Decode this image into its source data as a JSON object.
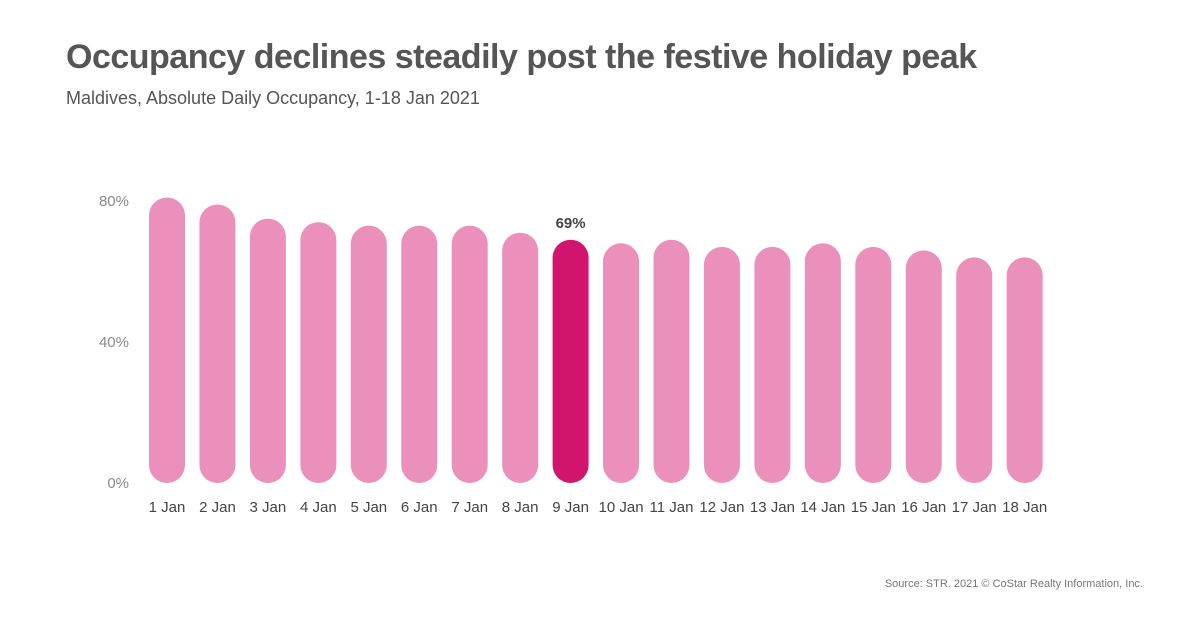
{
  "header": {
    "title": "Occupancy declines steadily post the festive holiday peak",
    "subtitle": "Maldives, Absolute Daily Occupancy, 1-18 Jan 2021"
  },
  "footer": {
    "source": "Source: STR. 2021 © CoStar Realty Information, Inc."
  },
  "colors": {
    "bar": "#ea90bb",
    "highlight": "#d1156f"
  },
  "chart_data": {
    "type": "bar",
    "categories": [
      "1 Jan",
      "2 Jan",
      "3 Jan",
      "4 Jan",
      "5 Jan",
      "6 Jan",
      "7 Jan",
      "8 Jan",
      "9 Jan",
      "10 Jan",
      "11 Jan",
      "12 Jan",
      "13 Jan",
      "14 Jan",
      "15 Jan",
      "16 Jan",
      "17 Jan",
      "18 Jan"
    ],
    "values": [
      81,
      79,
      75,
      74,
      73,
      73,
      73,
      71,
      69,
      68,
      69,
      67,
      67,
      68,
      67,
      66,
      64,
      64
    ],
    "highlight_index": 8,
    "data_labels": [
      {
        "index": 8,
        "text": "69%"
      }
    ],
    "y_ticks": [
      {
        "value": 0,
        "label": "0%"
      },
      {
        "value": 40,
        "label": "40%"
      },
      {
        "value": 80,
        "label": "80%"
      }
    ],
    "ylim": [
      0,
      80
    ],
    "grid": false,
    "legend": "none"
  }
}
